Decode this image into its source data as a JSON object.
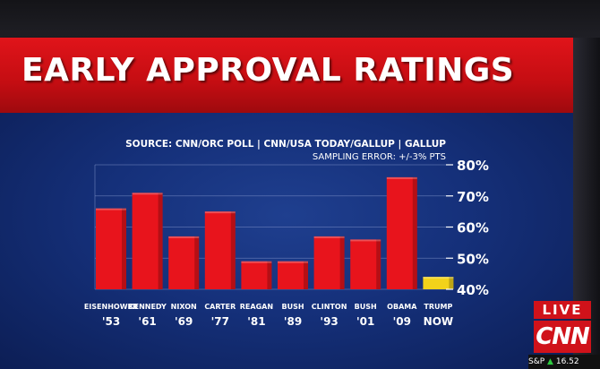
{
  "title": "EARLY APPROVAL RATINGS",
  "chart_data": {
    "type": "bar",
    "source": "SOURCE: CNN/ORC POLL | CNN/USA TODAY/GALLUP | GALLUP",
    "sampling_error": "SAMPLING ERROR: +/-3% PTS",
    "categories": [
      {
        "name": "EISENHOWER",
        "year": "'53"
      },
      {
        "name": "KENNEDY",
        "year": "'61"
      },
      {
        "name": "NIXON",
        "year": "'69"
      },
      {
        "name": "CARTER",
        "year": "'77"
      },
      {
        "name": "REAGAN",
        "year": "'81"
      },
      {
        "name": "BUSH",
        "year": "'89"
      },
      {
        "name": "CLINTON",
        "year": "'93"
      },
      {
        "name": "BUSH",
        "year": "'01"
      },
      {
        "name": "OBAMA",
        "year": "'09"
      },
      {
        "name": "TRUMP",
        "year": "NOW"
      }
    ],
    "values": [
      66,
      71,
      57,
      65,
      49,
      49,
      57,
      56,
      76,
      44
    ],
    "colors": [
      "#e8141c",
      "#e8141c",
      "#e8141c",
      "#e8141c",
      "#e8141c",
      "#e8141c",
      "#e8141c",
      "#e8141c",
      "#e8141c",
      "#f2d21a"
    ],
    "ylim": [
      40,
      80
    ],
    "yticks": [
      40,
      50,
      60,
      70,
      80
    ],
    "ytick_labels": [
      "40%",
      "50%",
      "60%",
      "70%",
      "80%"
    ],
    "xlabel": "",
    "ylabel": ""
  },
  "branding": {
    "live": "LIVE",
    "network": "CNN",
    "ticker_symbol": "S&P",
    "ticker_arrow": "▲",
    "ticker_value": "16.52"
  }
}
